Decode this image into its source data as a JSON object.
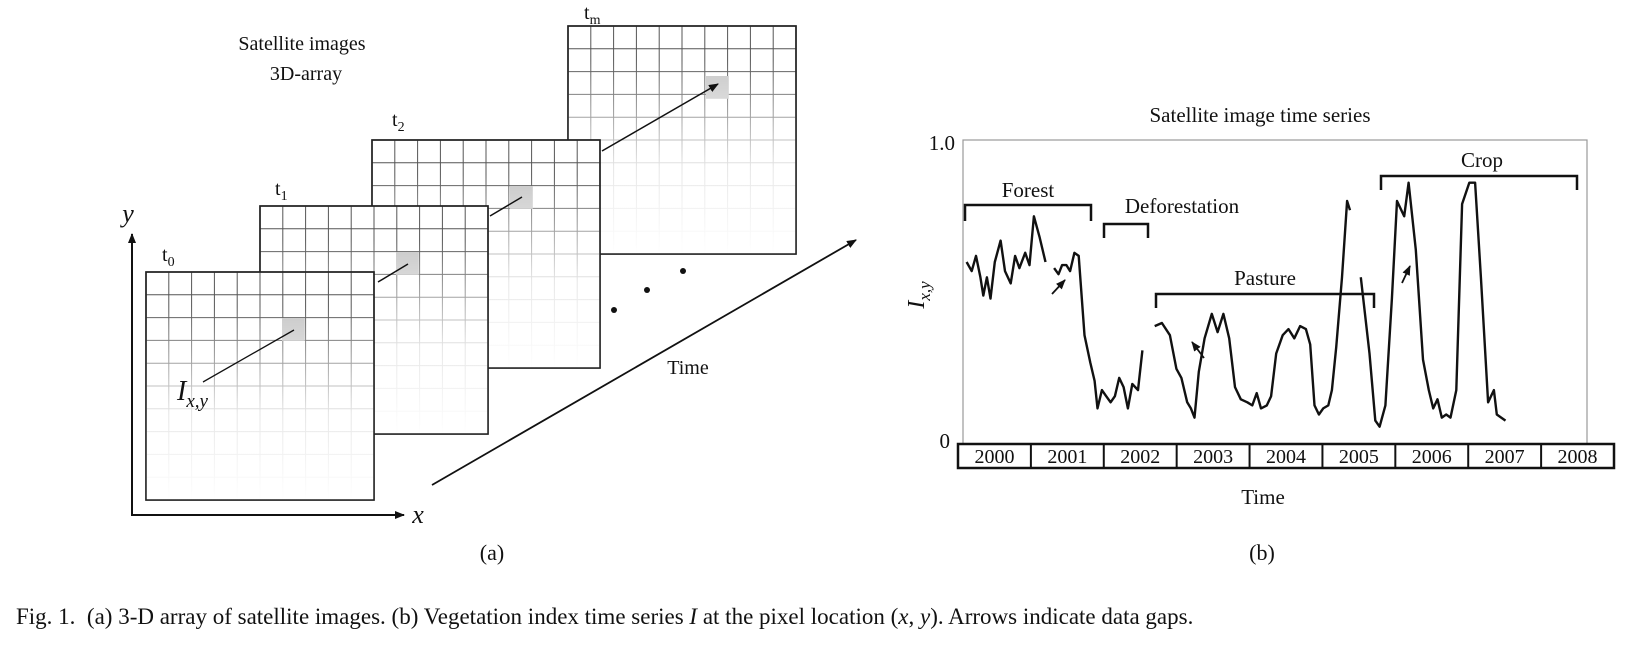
{
  "left": {
    "title_line1": "Satellite images",
    "title_line2": "3D-array",
    "frames": [
      {
        "base": "t",
        "sub": "0"
      },
      {
        "base": "t",
        "sub": "1"
      },
      {
        "base": "t",
        "sub": "2"
      },
      {
        "base": "t",
        "sub": "m"
      }
    ],
    "y_axis_label": "y",
    "x_axis_label": "x",
    "pixel_label_base": "I",
    "pixel_label_sub": "x,y",
    "time_label": "Time",
    "panel_label": "(a)"
  },
  "right": {
    "title": "Satellite image time series",
    "y_tick_top": "1.0",
    "y_tick_bottom": "0",
    "y_label_base": "I",
    "y_label_sub": "x,y",
    "years": [
      "2000",
      "2001",
      "2002",
      "2003",
      "2004",
      "2005",
      "2006",
      "2007",
      "2008"
    ],
    "phases": [
      "Forest",
      "Deforestation",
      "Pasture",
      "Crop"
    ],
    "x_label": "Time",
    "panel_label": "(b)"
  },
  "chart_data": {
    "type": "line",
    "title": "Satellite image time series",
    "ylabel": "I x,y",
    "xlabel": "Time",
    "ylim": [
      0,
      1.0
    ],
    "xlim": [
      2000,
      2009
    ],
    "annotations": [
      "Forest",
      "Deforestation",
      "Pasture",
      "Crop"
    ],
    "series": [
      {
        "segments": [
          [
            [
              2000.05,
              0.6
            ],
            [
              2000.12,
              0.57
            ],
            [
              2000.18,
              0.62
            ],
            [
              2000.24,
              0.55
            ],
            [
              2000.28,
              0.49
            ],
            [
              2000.33,
              0.55
            ],
            [
              2000.38,
              0.48
            ],
            [
              2000.44,
              0.6
            ],
            [
              2000.52,
              0.67
            ],
            [
              2000.58,
              0.57
            ],
            [
              2000.66,
              0.53
            ],
            [
              2000.72,
              0.62
            ],
            [
              2000.78,
              0.58
            ],
            [
              2000.86,
              0.63
            ],
            [
              2000.92,
              0.59
            ],
            [
              2000.98,
              0.75
            ],
            [
              2001.06,
              0.68
            ],
            [
              2001.14,
              0.6
            ]
          ],
          [
            [
              2001.26,
              0.58
            ],
            [
              2001.32,
              0.56
            ],
            [
              2001.37,
              0.59
            ],
            [
              2001.43,
              0.59
            ],
            [
              2001.48,
              0.57
            ],
            [
              2001.54,
              0.63
            ],
            [
              2001.6,
              0.62
            ],
            [
              2001.68,
              0.36
            ],
            [
              2001.76,
              0.27
            ],
            [
              2001.82,
              0.21
            ],
            [
              2001.86,
              0.12
            ],
            [
              2001.92,
              0.18
            ],
            [
              2001.98,
              0.16
            ],
            [
              2002.04,
              0.14
            ],
            [
              2002.1,
              0.16
            ],
            [
              2002.16,
              0.22
            ],
            [
              2002.22,
              0.19
            ],
            [
              2002.28,
              0.12
            ],
            [
              2002.34,
              0.2
            ],
            [
              2002.42,
              0.18
            ],
            [
              2002.48,
              0.31
            ]
          ],
          [
            [
              2002.65,
              0.39
            ],
            [
              2002.75,
              0.4
            ],
            [
              2002.86,
              0.36
            ],
            [
              2002.95,
              0.25
            ],
            [
              2003.02,
              0.22
            ],
            [
              2003.1,
              0.14
            ],
            [
              2003.15,
              0.12
            ],
            [
              2003.2,
              0.09
            ],
            [
              2003.26,
              0.24
            ],
            [
              2003.34,
              0.35
            ],
            [
              2003.44,
              0.43
            ],
            [
              2003.52,
              0.37
            ],
            [
              2003.6,
              0.43
            ],
            [
              2003.68,
              0.35
            ],
            [
              2003.76,
              0.19
            ],
            [
              2003.84,
              0.15
            ],
            [
              2003.93,
              0.14
            ],
            [
              2004.0,
              0.13
            ],
            [
              2004.06,
              0.17
            ],
            [
              2004.12,
              0.12
            ],
            [
              2004.2,
              0.13
            ],
            [
              2004.26,
              0.16
            ],
            [
              2004.33,
              0.3
            ],
            [
              2004.42,
              0.36
            ],
            [
              2004.5,
              0.38
            ],
            [
              2004.58,
              0.35
            ],
            [
              2004.66,
              0.39
            ],
            [
              2004.74,
              0.38
            ],
            [
              2004.8,
              0.33
            ],
            [
              2004.86,
              0.13
            ],
            [
              2004.92,
              0.1
            ],
            [
              2004.98,
              0.12
            ],
            [
              2005.05,
              0.13
            ],
            [
              2005.1,
              0.18
            ],
            [
              2005.16,
              0.32
            ],
            [
              2005.24,
              0.55
            ],
            [
              2005.31,
              0.8
            ],
            [
              2005.35,
              0.77
            ]
          ]
        ]
      },
      {
        "segments": [
          [
            [
              2005.5,
              0.55
            ],
            [
              2005.62,
              0.3
            ],
            [
              2005.7,
              0.08
            ],
            [
              2005.76,
              0.06
            ],
            [
              2005.84,
              0.13
            ],
            [
              2005.93,
              0.48
            ],
            [
              2006.0,
              0.8
            ],
            [
              2006.1,
              0.75
            ],
            [
              2006.16,
              0.86
            ],
            [
              2006.26,
              0.64
            ],
            [
              2006.36,
              0.28
            ],
            [
              2006.44,
              0.18
            ],
            [
              2006.5,
              0.12
            ],
            [
              2006.56,
              0.15
            ],
            [
              2006.62,
              0.09
            ],
            [
              2006.68,
              0.1
            ],
            [
              2006.74,
              0.09
            ],
            [
              2006.82,
              0.18
            ],
            [
              2006.9,
              0.79
            ],
            [
              2007.0,
              0.86
            ],
            [
              2007.08,
              0.86
            ],
            [
              2007.16,
              0.55
            ],
            [
              2007.26,
              0.14
            ],
            [
              2007.34,
              0.18
            ],
            [
              2007.38,
              0.1
            ],
            [
              2007.44,
              0.09
            ],
            [
              2007.5,
              0.08
            ]
          ]
        ]
      }
    ]
  }
}
